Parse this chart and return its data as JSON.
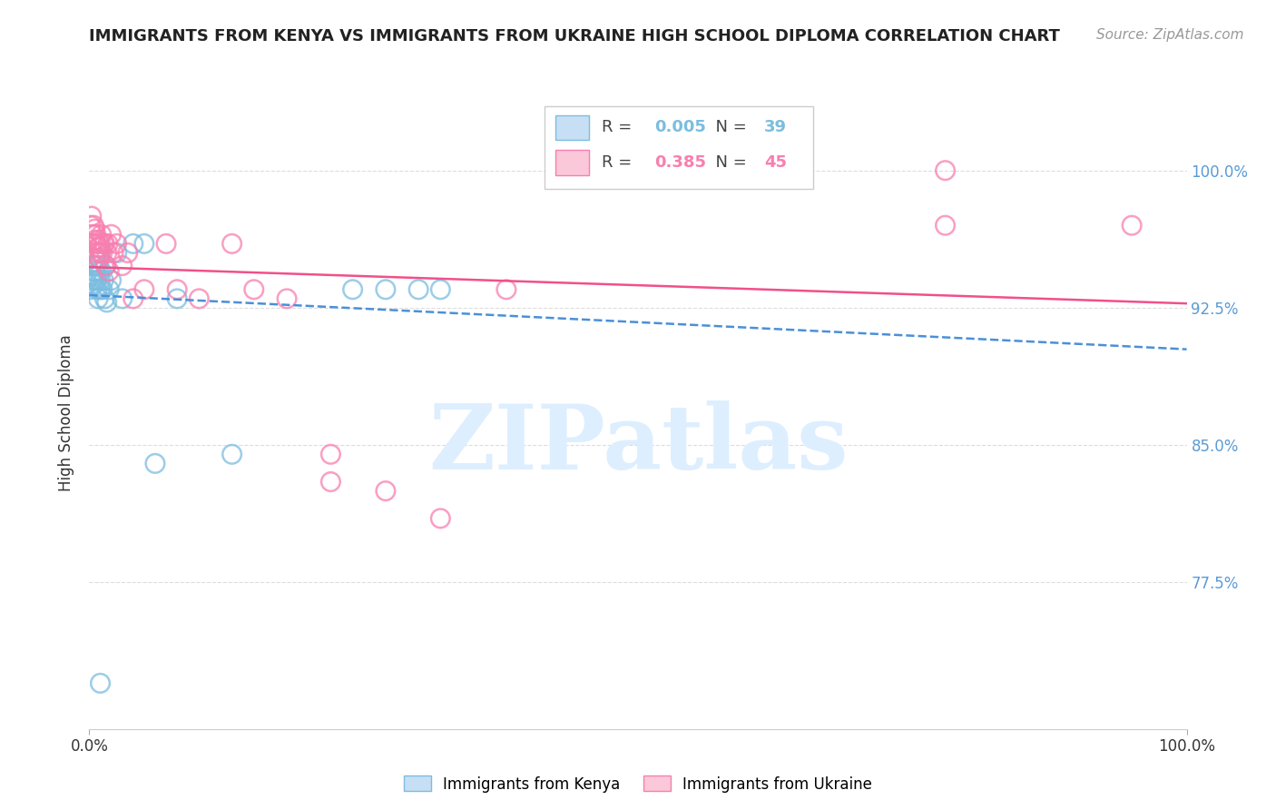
{
  "title": "IMMIGRANTS FROM KENYA VS IMMIGRANTS FROM UKRAINE HIGH SCHOOL DIPLOMA CORRELATION CHART",
  "source": "Source: ZipAtlas.com",
  "ylabel": "High School Diploma",
  "yticks": [
    0.775,
    0.85,
    0.925,
    1.0
  ],
  "ytick_labels": [
    "77.5%",
    "85.0%",
    "92.5%",
    "100.0%"
  ],
  "xlim": [
    0.0,
    1.0
  ],
  "ylim": [
    0.695,
    1.04
  ],
  "kenya_R": 0.005,
  "kenya_N": 39,
  "ukraine_R": 0.385,
  "ukraine_N": 45,
  "kenya_color": "#7bbde0",
  "ukraine_color": "#f87faf",
  "kenya_line_color": "#4a90d9",
  "ukraine_line_color": "#f0508a",
  "kenya_x": [
    0.001,
    0.002,
    0.003,
    0.003,
    0.004,
    0.004,
    0.005,
    0.005,
    0.006,
    0.006,
    0.007,
    0.007,
    0.008,
    0.008,
    0.009,
    0.009,
    0.01,
    0.01,
    0.011,
    0.012,
    0.013,
    0.014,
    0.015,
    0.016,
    0.018,
    0.02,
    0.025,
    0.03,
    0.04,
    0.05,
    0.06,
    0.08,
    0.13,
    0.27,
    0.32,
    0.01,
    0.3,
    0.01,
    0.24
  ],
  "kenya_y": [
    0.935,
    0.94,
    0.943,
    0.938,
    0.948,
    0.942,
    0.952,
    0.945,
    0.948,
    0.94,
    0.935,
    0.94,
    0.93,
    0.948,
    0.945,
    0.952,
    0.94,
    0.935,
    0.945,
    0.935,
    0.94,
    0.93,
    0.948,
    0.928,
    0.935,
    0.94,
    0.955,
    0.93,
    0.96,
    0.96,
    0.84,
    0.93,
    0.845,
    0.935,
    0.935,
    0.72,
    0.935,
    0.955,
    0.935
  ],
  "ukraine_x": [
    0.001,
    0.002,
    0.003,
    0.003,
    0.004,
    0.005,
    0.005,
    0.006,
    0.007,
    0.007,
    0.008,
    0.008,
    0.009,
    0.009,
    0.01,
    0.01,
    0.011,
    0.012,
    0.013,
    0.014,
    0.015,
    0.016,
    0.017,
    0.018,
    0.02,
    0.022,
    0.025,
    0.03,
    0.035,
    0.04,
    0.05,
    0.07,
    0.08,
    0.1,
    0.13,
    0.18,
    0.22,
    0.27,
    0.32,
    0.38,
    0.22,
    0.78,
    0.15,
    0.78,
    0.95
  ],
  "ukraine_y": [
    0.97,
    0.975,
    0.965,
    0.96,
    0.97,
    0.968,
    0.962,
    0.965,
    0.955,
    0.96,
    0.958,
    0.962,
    0.952,
    0.958,
    0.96,
    0.955,
    0.965,
    0.955,
    0.96,
    0.96,
    0.948,
    0.955,
    0.96,
    0.945,
    0.965,
    0.955,
    0.96,
    0.948,
    0.955,
    0.93,
    0.935,
    0.96,
    0.935,
    0.93,
    0.96,
    0.93,
    0.83,
    0.825,
    0.81,
    0.935,
    0.845,
    0.97,
    0.935,
    1.0,
    0.97
  ],
  "background_color": "#ffffff",
  "grid_color_h": "#dddddd",
  "grid_color_v": "#eeeeee",
  "watermark_text": "ZIPatlas",
  "watermark_color": "#ddeeff"
}
